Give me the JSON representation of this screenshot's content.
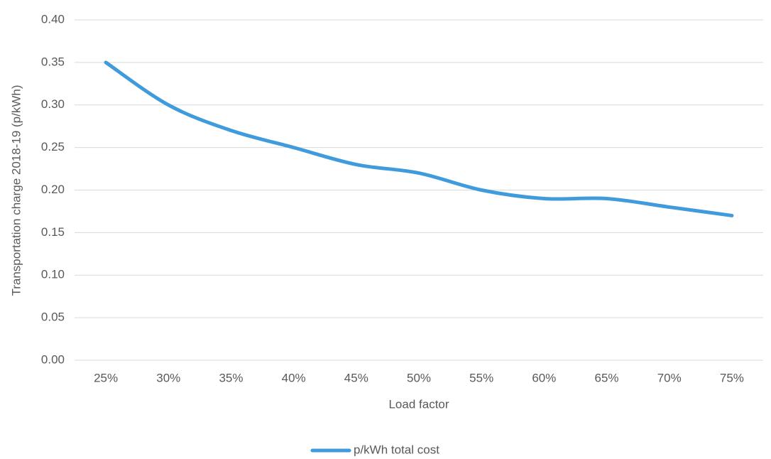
{
  "chart_data": {
    "type": "line",
    "xlabel": "Load factor",
    "ylabel": "Transportation charge 2018-19 (p/kWh)",
    "categories": [
      "25%",
      "30%",
      "35%",
      "40%",
      "45%",
      "50%",
      "55%",
      "60%",
      "65%",
      "70%",
      "75%"
    ],
    "series": [
      {
        "name": "p/kWh total cost",
        "color": "#3f9bdc",
        "values": [
          0.35,
          0.3,
          0.27,
          0.25,
          0.23,
          0.22,
          0.2,
          0.19,
          0.19,
          0.18,
          0.17
        ]
      }
    ],
    "ylim": [
      0,
      0.4
    ],
    "yticks": [
      {
        "value": 0,
        "label": "0.00"
      },
      0.05,
      {
        "value": 0.1,
        "label": "0.10"
      },
      0.15,
      {
        "value": 0.2,
        "label": "0.20"
      },
      0.25,
      {
        "value": 0.3,
        "label": "0.30"
      },
      0.35,
      {
        "value": 0.4,
        "label": "0.40"
      }
    ],
    "grid": true,
    "legend": "bottom"
  }
}
